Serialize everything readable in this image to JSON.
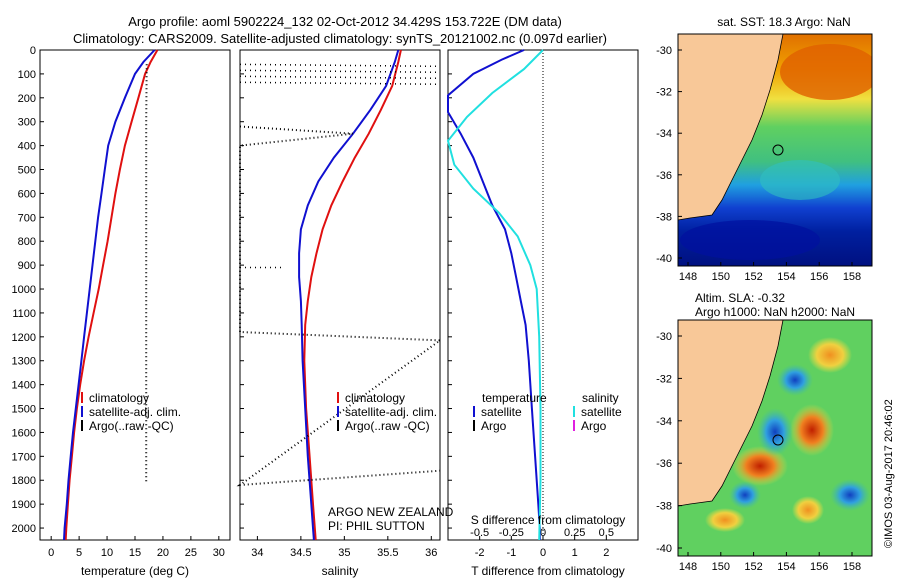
{
  "header": {
    "line1": "Argo profile: aoml 5902224_132 02-Oct-2012 34.429S 153.722E (DM data)",
    "line2": "Climatology: CARS2009. Satellite-adjusted climatology: synTS_20121002.nc (0.097d earlier)"
  },
  "colors": {
    "climatology": "#e01010",
    "satellite": "#1010d0",
    "argo": "#000000",
    "sal_satellite": "#20e0e0",
    "sal_argo": "#e020e0",
    "land": "#f8c898"
  },
  "chart_data": [
    {
      "type": "line",
      "title": "",
      "xlabel": "temperature (deg C)",
      "ylabel": "",
      "xlim": [
        -2,
        32
      ],
      "ylim": [
        2050,
        0
      ],
      "xticks": [
        0,
        5,
        10,
        15,
        20,
        25,
        30
      ],
      "yticks": [
        0,
        100,
        200,
        300,
        400,
        500,
        600,
        700,
        800,
        900,
        1000,
        1100,
        1200,
        1300,
        1400,
        1500,
        1600,
        1700,
        1800,
        1900,
        2000
      ],
      "series": [
        {
          "name": "climatology",
          "points": [
            [
              19.0,
              0
            ],
            [
              17.8,
              50
            ],
            [
              16.8,
              100
            ],
            [
              15.6,
              200
            ],
            [
              14.4,
              300
            ],
            [
              13.2,
              400
            ],
            [
              12.3,
              500
            ],
            [
              11.5,
              600
            ],
            [
              10.8,
              700
            ],
            [
              10.1,
              800
            ],
            [
              9.3,
              900
            ],
            [
              8.5,
              1000
            ],
            [
              7.6,
              1100
            ],
            [
              6.7,
              1200
            ],
            [
              5.9,
              1300
            ],
            [
              5.2,
              1400
            ],
            [
              4.6,
              1500
            ],
            [
              4.1,
              1600
            ],
            [
              3.7,
              1700
            ],
            [
              3.3,
              1800
            ],
            [
              3.0,
              1900
            ],
            [
              2.7,
              2000
            ],
            [
              2.6,
              2050
            ]
          ]
        },
        {
          "name": "satellite-adj. clim.",
          "points": [
            [
              18.5,
              0
            ],
            [
              16.5,
              50
            ],
            [
              15.0,
              100
            ],
            [
              13.2,
              200
            ],
            [
              11.5,
              300
            ],
            [
              10.2,
              400
            ],
            [
              9.6,
              500
            ],
            [
              9.0,
              600
            ],
            [
              8.4,
              700
            ],
            [
              7.9,
              800
            ],
            [
              7.4,
              900
            ],
            [
              6.9,
              1000
            ],
            [
              6.4,
              1100
            ],
            [
              5.9,
              1200
            ],
            [
              5.4,
              1300
            ],
            [
              4.9,
              1400
            ],
            [
              4.4,
              1500
            ],
            [
              3.9,
              1600
            ],
            [
              3.5,
              1700
            ],
            [
              3.1,
              1800
            ],
            [
              2.8,
              1900
            ],
            [
              2.4,
              2000
            ],
            [
              2.3,
              2050
            ]
          ]
        },
        {
          "name": "Argo(..raw -QC)",
          "points": [
            [
              17.1,
              60
            ],
            [
              17.0,
              300
            ],
            [
              17.0,
              600
            ],
            [
              17.0,
              1000
            ],
            [
              17.0,
              1400
            ],
            [
              17.0,
              1810
            ]
          ]
        }
      ],
      "legend": [
        "climatology",
        "satellite-adj. clim.",
        "Argo(..raw -QC)"
      ]
    },
    {
      "type": "line",
      "xlabel": "salinity",
      "xlim": [
        33.8,
        36.1
      ],
      "xticks": [
        34,
        34.5,
        35,
        35.5,
        36
      ],
      "xtick_labels": [
        "34",
        "34.5",
        "35",
        "35.5",
        "36"
      ],
      "series": [
        {
          "name": "climatology",
          "points": [
            [
              35.65,
              0
            ],
            [
              35.62,
              50
            ],
            [
              35.55,
              150
            ],
            [
              35.42,
              250
            ],
            [
              35.28,
              350
            ],
            [
              35.12,
              450
            ],
            [
              34.98,
              550
            ],
            [
              34.85,
              650
            ],
            [
              34.75,
              750
            ],
            [
              34.68,
              850
            ],
            [
              34.62,
              950
            ],
            [
              34.58,
              1050
            ],
            [
              34.55,
              1150
            ],
            [
              34.54,
              1300
            ],
            [
              34.56,
              1500
            ],
            [
              34.6,
              1700
            ],
            [
              34.64,
              1900
            ],
            [
              34.66,
              2000
            ],
            [
              34.67,
              2050
            ]
          ]
        },
        {
          "name": "satellite-adj. clim.",
          "points": [
            [
              35.62,
              0
            ],
            [
              35.58,
              50
            ],
            [
              35.48,
              150
            ],
            [
              35.3,
              250
            ],
            [
              35.1,
              350
            ],
            [
              34.88,
              450
            ],
            [
              34.7,
              550
            ],
            [
              34.58,
              650
            ],
            [
              34.5,
              750
            ],
            [
              34.48,
              850
            ],
            [
              34.48,
              950
            ],
            [
              34.5,
              1050
            ],
            [
              34.51,
              1150
            ],
            [
              34.52,
              1300
            ],
            [
              34.55,
              1500
            ],
            [
              34.58,
              1700
            ],
            [
              34.62,
              1900
            ],
            [
              34.64,
              2000
            ],
            [
              34.65,
              2050
            ]
          ]
        },
        {
          "name": "Argo(..raw -QC)",
          "points": [
            [
              33.8,
              320
            ],
            [
              35.1,
              350
            ],
            [
              33.8,
              400
            ],
            [
              33.8,
              1180
            ],
            [
              36.1,
              1215
            ],
            [
              33.8,
              1820
            ],
            [
              36.1,
              1760
            ]
          ]
        }
      ],
      "legend": [
        "climatology",
        "satellite-adj. clim.",
        "Argo(..raw -QC)"
      ],
      "annotations": [
        "ARGO NEW ZEALAND",
        "PI: PHIL SUTTON"
      ]
    },
    {
      "type": "line",
      "xlabel": "T difference from climatology",
      "xlabel_top": "S difference from climatology",
      "xlim": [
        -3,
        3
      ],
      "xticks": [
        -2,
        -1,
        0,
        1,
        2
      ],
      "xticks_sal": [
        -0.5,
        -0.25,
        0,
        0.25,
        0.5
      ],
      "xtick_labels_sal": [
        "-0.5",
        "-0.25",
        "0",
        "0.25",
        "0.5"
      ],
      "series": [
        {
          "name": "temperature satellite",
          "points": [
            [
              -0.6,
              0
            ],
            [
              -1.3,
              40
            ],
            [
              -2.2,
              100
            ],
            [
              -3.0,
              190
            ],
            [
              -3.0,
              260
            ],
            [
              -2.6,
              350
            ],
            [
              -2.2,
              450
            ],
            [
              -1.9,
              550
            ],
            [
              -1.6,
              650
            ],
            [
              -1.2,
              750
            ],
            [
              -1.0,
              850
            ],
            [
              -0.85,
              950
            ],
            [
              -0.7,
              1050
            ],
            [
              -0.55,
              1150
            ],
            [
              -0.45,
              1300
            ],
            [
              -0.35,
              1500
            ],
            [
              -0.25,
              1700
            ],
            [
              -0.15,
              1900
            ],
            [
              -0.1,
              2000
            ],
            [
              -0.1,
              2050
            ]
          ]
        },
        {
          "name": "salinity satellite",
          "points": [
            [
              0.0,
              0
            ],
            [
              -0.15,
              80
            ],
            [
              -0.4,
              180
            ],
            [
              -0.6,
              280
            ],
            [
              -0.75,
              380
            ],
            [
              -0.7,
              480
            ],
            [
              -0.55,
              580
            ],
            [
              -0.35,
              680
            ],
            [
              -0.2,
              780
            ],
            [
              -0.1,
              900
            ],
            [
              -0.05,
              1000
            ],
            [
              -0.03,
              1200
            ],
            [
              -0.02,
              1500
            ],
            [
              -0.02,
              1800
            ],
            [
              -0.03,
              2050
            ]
          ]
        }
      ],
      "legend_headers": [
        "temperature",
        "salinity"
      ],
      "legend": [
        "satellite",
        "Argo",
        "satellite",
        "Argo"
      ]
    }
  ],
  "maps": {
    "sst": {
      "title": "sat. SST: 18.3 Argo: NaN",
      "lat_ticks": [
        "-30",
        "-32",
        "-34",
        "-36",
        "-38",
        "-40"
      ],
      "lon_ticks": [
        "148",
        "150",
        "152",
        "154",
        "156",
        "158"
      ]
    },
    "sla": {
      "title1": "Altim. SLA: -0.32",
      "title2": "Argo h1000: NaN h2000: NaN",
      "lat_ticks": [
        "-30",
        "-32",
        "-34",
        "-36",
        "-38",
        "-40"
      ],
      "lon_ticks": [
        "148",
        "150",
        "152",
        "154",
        "156",
        "158"
      ]
    }
  },
  "stamp": "©IMOS 03-Aug-2017 20:46:02"
}
